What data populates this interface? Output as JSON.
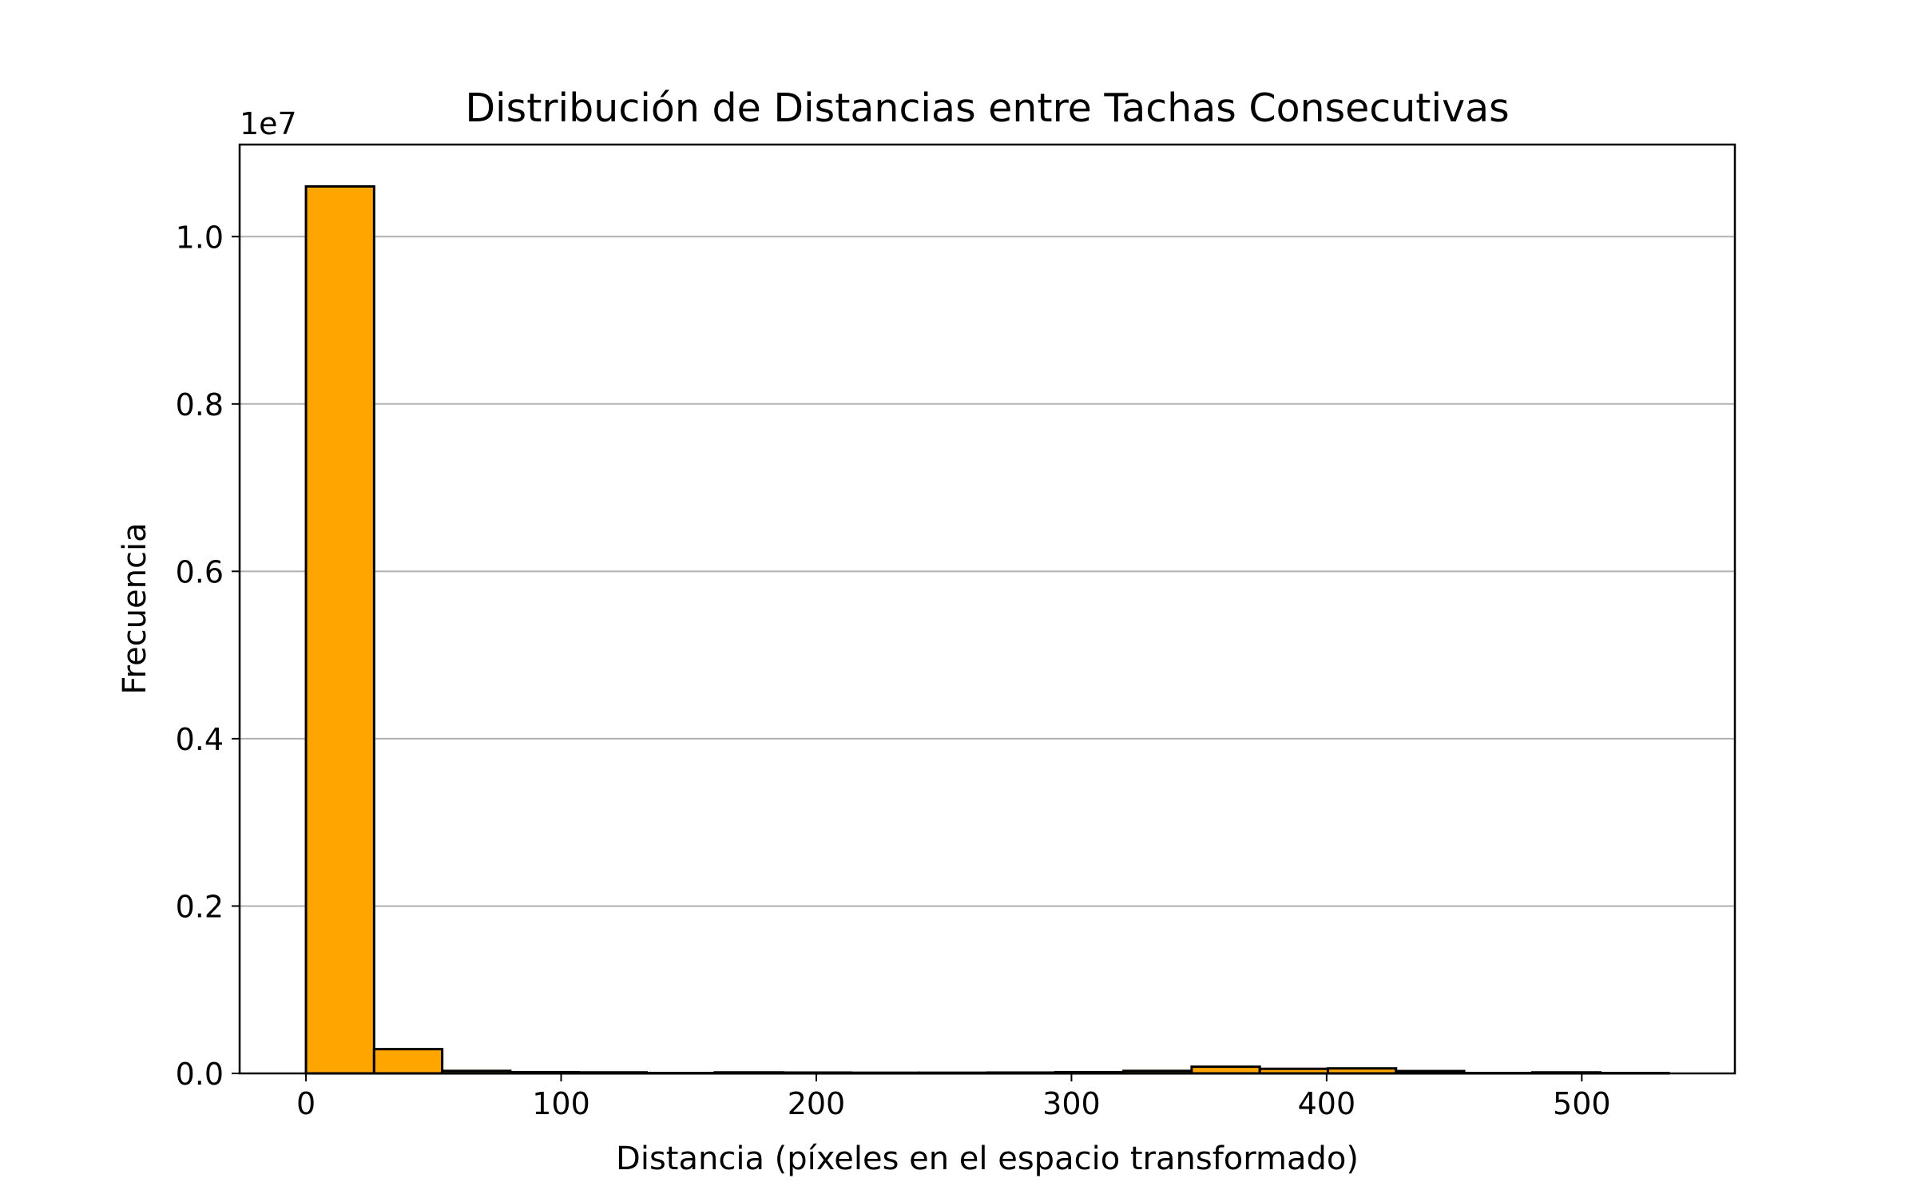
{
  "chart_data": {
    "type": "bar",
    "title": "Distribución de Distancias entre Tachas Consecutivas",
    "xlabel": "Distancia (píxeles en el espacio transformado)",
    "ylabel": "Frecuencia",
    "y_offset_label": "1e7",
    "y_scale": 10000000,
    "xlim": [
      -26,
      560
    ],
    "ylim": [
      0,
      11100000
    ],
    "x_ticks": [
      0,
      100,
      200,
      300,
      400,
      500
    ],
    "y_ticks": [
      0,
      2000000,
      4000000,
      6000000,
      8000000,
      10000000
    ],
    "y_tick_labels": [
      "0.0",
      "0.2",
      "0.4",
      "0.6",
      "0.8",
      "1.0"
    ],
    "grid": "y",
    "bin_edges": [
      0,
      26.7,
      53.4,
      80.1,
      106.8,
      133.5,
      160.2,
      186.9,
      213.6,
      240.3,
      267.0,
      293.7,
      320.4,
      347.1,
      373.8,
      400.5,
      427.2,
      453.9,
      480.6,
      507.3,
      534.0
    ],
    "values": [
      10600000,
      290000,
      30000,
      15000,
      12000,
      5000,
      12000,
      10000,
      8000,
      8000,
      10000,
      15000,
      30000,
      80000,
      55000,
      60000,
      28000,
      5000,
      12000,
      5000
    ],
    "bar_color": "#ffa500",
    "edge_color": "#000000"
  }
}
